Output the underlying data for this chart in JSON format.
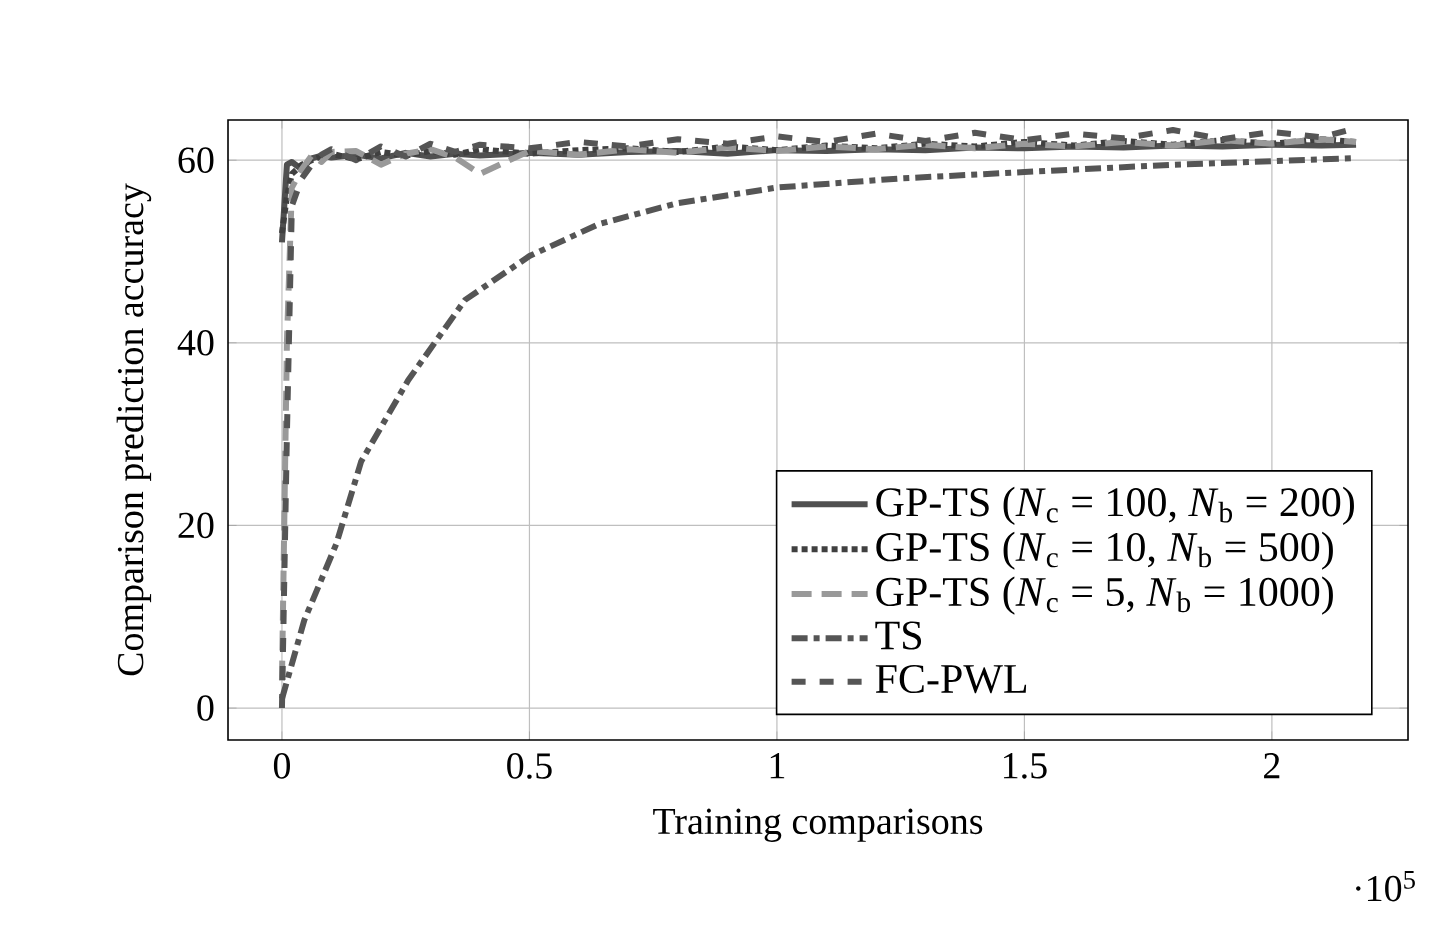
{
  "chart_data": {
    "type": "line",
    "xlabel": "Training comparisons",
    "ylabel": "Comparison prediction accuracy",
    "annotations": [
      "·10$^{5}$"
    ],
    "xlim": [
      -0.109,
      2.275
    ],
    "ylim": [
      -3.5,
      64.4
    ],
    "xticks": [
      0,
      0.5,
      1,
      1.5,
      2
    ],
    "yticks": [
      0,
      20,
      40,
      60
    ],
    "grid": true,
    "legend": "bottom right",
    "series": [
      {
        "name": "GP-TS (*N*$_{c}$ = 100, *N*$_{b}$ = 200)",
        "color": "#505050",
        "line_style": "solid",
        "x": [
          0,
          0.01,
          0.02,
          0.04,
          0.06,
          0.08,
          0.1,
          0.15,
          0.2,
          0.25,
          0.3,
          0.35,
          0.4,
          0.5,
          0.6,
          0.7,
          0.8,
          0.9,
          1.0,
          1.1,
          1.2,
          1.3,
          1.4,
          1.5,
          1.6,
          1.7,
          1.8,
          1.9,
          2.0,
          2.1,
          2.17
        ],
        "values": [
          51,
          59.5,
          59.8,
          59,
          60.2,
          60.5,
          60.3,
          60.6,
          60.2,
          60.8,
          60.4,
          60.7,
          60.5,
          60.8,
          60.6,
          60.9,
          61,
          60.7,
          61.1,
          61,
          61.2,
          61.1,
          61.4,
          61.3,
          61.5,
          61.4,
          61.6,
          61.5,
          61.7,
          61.6,
          61.7
        ]
      },
      {
        "name": "GP-TS (*N*$_{c}$ = 10, *N*$_{b}$ = 500)",
        "color": "#404040",
        "line_style": "dotted",
        "x": [
          0,
          0.01,
          0.02,
          0.04,
          0.06,
          0.08,
          0.1,
          0.15,
          0.2,
          0.25,
          0.3,
          0.35,
          0.4,
          0.5,
          0.6,
          0.7,
          0.8,
          0.9,
          1.0,
          1.1,
          1.2,
          1.3,
          1.4,
          1.5,
          1.6,
          1.7,
          1.8,
          1.9,
          2.0,
          2.1,
          2.17
        ],
        "values": [
          52,
          56,
          58.5,
          59.5,
          60,
          60.4,
          60.7,
          60.1,
          60.9,
          60.5,
          61,
          60.6,
          61.2,
          60.7,
          61.1,
          61.3,
          60.9,
          61.5,
          61.1,
          61.6,
          61.3,
          61.8,
          61.5,
          62,
          61.6,
          62.1,
          61.7,
          62.2,
          61.8,
          62.3,
          62
        ]
      },
      {
        "name": "GP-TS (*N*$_{c}$ = 5, *N*$_{b}$ = 1000)",
        "color": "#999999",
        "line_style": "dashed",
        "x": [
          0,
          0.01,
          0.02,
          0.04,
          0.06,
          0.08,
          0.1,
          0.15,
          0.2,
          0.25,
          0.3,
          0.35,
          0.4,
          0.5,
          0.6,
          0.7,
          0.8,
          0.9,
          1.0,
          1.1,
          1.2,
          1.3,
          1.4,
          1.5,
          1.6,
          1.7,
          1.8,
          1.9,
          2.0,
          2.1,
          2.17
        ],
        "values": [
          3,
          40,
          57,
          59,
          60.5,
          59.8,
          60.9,
          61,
          59.5,
          60.7,
          61.2,
          60.3,
          58.5,
          61,
          60.6,
          61.2,
          60.8,
          61.4,
          61,
          61.5,
          61.2,
          61.7,
          61.3,
          61.8,
          61.5,
          62,
          61.6,
          62.2,
          61.8,
          62.3,
          62
        ]
      },
      {
        "name": "TS",
        "color": "#555555",
        "line_style": "dashdotted",
        "x": [
          0,
          0.045,
          0.11,
          0.16,
          0.255,
          0.37,
          0.5,
          0.64,
          0.8,
          1.0,
          1.25,
          1.5,
          1.8,
          2.16
        ],
        "values": [
          1,
          9.6,
          18,
          27,
          35.9,
          44.7,
          49.5,
          53,
          55.3,
          57,
          58,
          58.7,
          59.5,
          60.2
        ]
      },
      {
        "name": "FC-PWL",
        "color": "#555555",
        "line_style": "loosely dashed",
        "x": [
          0,
          0.01,
          0.02,
          0.04,
          0.06,
          0.08,
          0.1,
          0.15,
          0.2,
          0.25,
          0.3,
          0.35,
          0.4,
          0.5,
          0.6,
          0.7,
          0.8,
          0.9,
          1.0,
          1.1,
          1.2,
          1.3,
          1.4,
          1.5,
          1.6,
          1.7,
          1.8,
          1.9,
          2.0,
          2.1,
          2.17
        ],
        "values": [
          0,
          30,
          55,
          58,
          59.5,
          60.6,
          61.2,
          60,
          61.5,
          60.4,
          61.8,
          60.9,
          61.7,
          61.3,
          62,
          61.5,
          62.3,
          61.8,
          62.6,
          62,
          62.9,
          62.1,
          63,
          62.2,
          62.9,
          62.4,
          63.3,
          62.3,
          63.1,
          62.5,
          63.5
        ]
      }
    ]
  }
}
